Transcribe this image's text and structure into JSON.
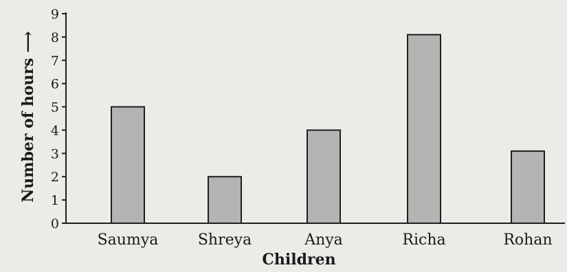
{
  "chart_data": {
    "type": "bar",
    "categories": [
      "Saumya",
      "Shreya",
      "Anya",
      "Richa",
      "Rohan"
    ],
    "values": [
      5,
      2,
      4,
      8.1,
      3.1
    ],
    "xlabel": "Children",
    "ylabel": "Number of hours ⟶",
    "ylim": [
      0,
      9
    ],
    "yticks": [
      "0",
      "1",
      "2",
      "3",
      "4",
      "5",
      "6",
      "7",
      "8",
      "9"
    ],
    "grid": false,
    "legend": "none",
    "colors": {
      "bar_fill": "#b4b4b2",
      "bar_stroke": "#1e1e1e",
      "axis": "#1e1e1e",
      "text": "#1a1a1a",
      "background": "#ecebe8"
    }
  }
}
